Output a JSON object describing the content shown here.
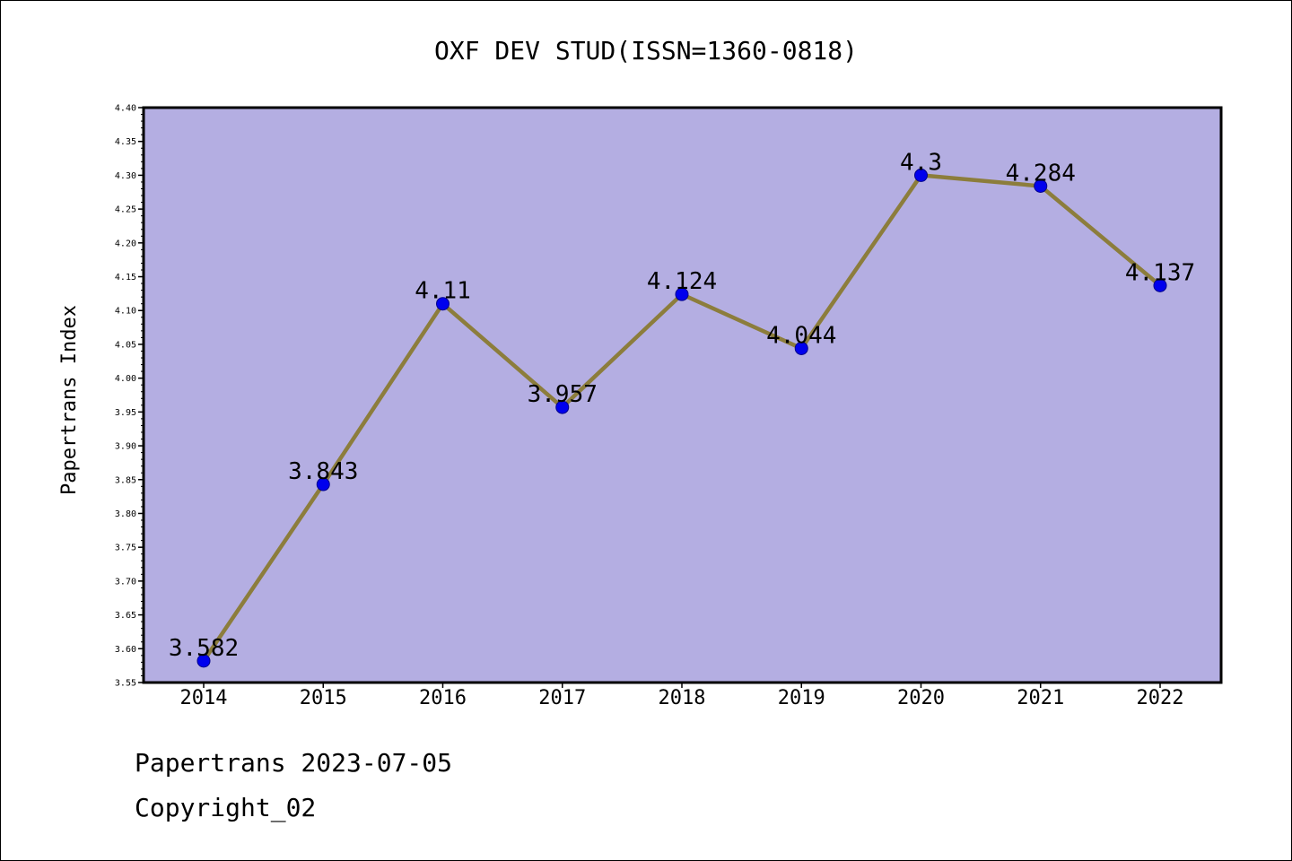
{
  "chart_data": {
    "type": "line",
    "title": "OXF DEV STUD(ISSN=1360-0818)",
    "xlabel": "",
    "ylabel": "Papertrans Index",
    "categories": [
      "2014",
      "2015",
      "2016",
      "2017",
      "2018",
      "2019",
      "2020",
      "2021",
      "2022"
    ],
    "values": [
      3.582,
      3.843,
      4.11,
      3.957,
      4.124,
      4.044,
      4.3,
      4.284,
      4.137
    ],
    "data_labels": [
      "3.582",
      "3.843",
      "4.11",
      "3.957",
      "4.124",
      "4.044",
      "4.3",
      "4.284",
      "4.137"
    ],
    "ylim": [
      3.55,
      4.4
    ],
    "yticks": [
      "3.55",
      "3.60",
      "3.65",
      "3.70",
      "3.75",
      "3.80",
      "3.85",
      "3.90",
      "3.95",
      "4.00",
      "4.05",
      "4.10",
      "4.15",
      "4.20",
      "4.25",
      "4.30",
      "4.35",
      "4.40"
    ],
    "grid": false,
    "legend": "none",
    "colors": {
      "plot_background": "#b4aee2",
      "line": "#8c7d3c",
      "marker": "#0000ee",
      "marker_edge": "#00008b"
    }
  },
  "footer": {
    "date_line": "Papertrans 2023-07-05",
    "copyright": "Copyright_02"
  }
}
